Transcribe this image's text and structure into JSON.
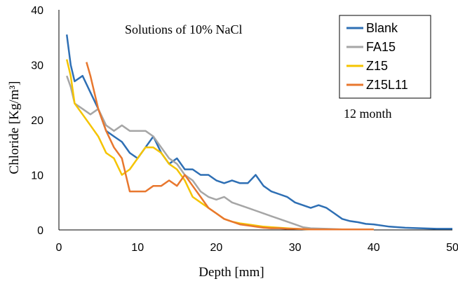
{
  "chart_data": {
    "type": "line",
    "xlabel": "Depth [mm]",
    "ylabel": "Chloride [Kg/m³]",
    "xlim": [
      0,
      50
    ],
    "ylim": [
      0,
      40
    ],
    "xticks": [
      "0",
      "10",
      "20",
      "30",
      "40",
      "50"
    ],
    "yticks": [
      "0",
      "10",
      "20",
      "30",
      "40"
    ],
    "grid": false,
    "legend_placement": "top-right",
    "annotations": [
      "Solutions of 10% NaCl",
      "12 month"
    ],
    "series": [
      {
        "name": "Blank",
        "color": "#2e6fb4",
        "x": [
          1.0,
          1.5,
          2,
          3,
          4,
          5,
          6,
          7,
          8,
          9,
          10,
          11,
          12,
          13,
          14,
          15,
          16,
          17,
          18,
          19,
          20,
          21,
          22,
          23,
          24,
          25,
          26,
          27,
          28,
          29,
          30,
          31,
          32,
          33,
          34,
          35,
          36,
          37,
          38,
          39,
          40,
          42,
          44,
          46,
          48,
          50
        ],
        "y": [
          35.5,
          30,
          27,
          28,
          25,
          22,
          18,
          17,
          16,
          14,
          13,
          15,
          17,
          14,
          12,
          13,
          11,
          11,
          10,
          10,
          9,
          8.5,
          9,
          8.5,
          8.5,
          10,
          8,
          7,
          6.5,
          6,
          5,
          4.5,
          4,
          4.5,
          4,
          3,
          2,
          1.6,
          1.4,
          1.1,
          1.0,
          0.6,
          0.4,
          0.3,
          0.2,
          0.2
        ]
      },
      {
        "name": "FA15",
        "color": "#a6a6a6",
        "x": [
          1.0,
          1.5,
          2,
          3,
          4,
          5,
          6,
          7,
          8,
          9,
          10,
          11,
          12,
          13,
          14,
          15,
          16,
          17,
          18,
          19,
          20,
          21,
          22,
          23,
          24,
          25,
          26,
          27,
          28,
          29,
          30,
          31,
          32,
          34,
          36,
          40
        ],
        "y": [
          28,
          26,
          23,
          22,
          21,
          22,
          19,
          18,
          19,
          18,
          18,
          18,
          17,
          15,
          13,
          12,
          10,
          9,
          7,
          6,
          5.5,
          6,
          5,
          4.5,
          4,
          3.5,
          3,
          2.5,
          2,
          1.5,
          1,
          0.5,
          0.3,
          0.2,
          0.1,
          0.1
        ]
      },
      {
        "name": "Z15",
        "color": "#f5c400",
        "x": [
          1.0,
          1.5,
          2,
          3,
          4,
          5,
          6,
          7,
          8,
          9,
          10,
          11,
          12,
          13,
          14,
          15,
          16,
          17,
          18,
          19,
          20,
          21,
          22,
          23,
          24,
          25,
          26,
          27,
          28,
          29,
          30,
          32,
          34,
          36,
          40
        ],
        "y": [
          31,
          28,
          23,
          21,
          19,
          17,
          14,
          13,
          10,
          11,
          13,
          15,
          15,
          14,
          12,
          11,
          9,
          6,
          5,
          4,
          3,
          2,
          1.5,
          1.2,
          1,
          0.8,
          0.6,
          0.5,
          0.4,
          0.3,
          0.2,
          0.1,
          0.1,
          0.1,
          0.1
        ]
      },
      {
        "name": "Z15L11",
        "color": "#e8772e",
        "x": [
          3.5,
          4,
          4.5,
          5,
          6,
          7,
          8,
          9,
          10,
          11,
          12,
          13,
          14,
          15,
          16,
          17,
          18,
          19,
          20,
          21,
          22,
          23,
          24,
          25,
          26,
          27,
          28,
          29,
          30,
          32,
          34,
          36,
          40
        ],
        "y": [
          30.5,
          28,
          25,
          22,
          18,
          15,
          13,
          7,
          7,
          7,
          8,
          8,
          9,
          8,
          10,
          8,
          6,
          4,
          3,
          2,
          1.5,
          1,
          0.8,
          0.6,
          0.4,
          0.3,
          0.3,
          0.2,
          0.2,
          0.1,
          0.1,
          0.1,
          0.1
        ]
      }
    ]
  }
}
